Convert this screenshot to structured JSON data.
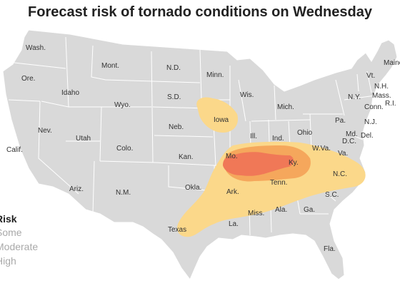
{
  "title": "Forecast risk of tornado conditions on Wednesday",
  "colors": {
    "land": "#d9d9d9",
    "border": "#ffffff",
    "risk_some": "#fbd88a",
    "risk_moderate": "#f5a75c",
    "risk_high": "#f07857",
    "label": "#333333"
  },
  "legend": {
    "title": "Risk",
    "items": [
      {
        "label": "Some",
        "level": "some"
      },
      {
        "label": "Moderate",
        "level": "moderate"
      },
      {
        "label": "High",
        "level": "high"
      }
    ]
  },
  "state_labels": [
    {
      "name": "Wash."
    },
    {
      "name": "Ore."
    },
    {
      "name": "Calif."
    },
    {
      "name": "Nev."
    },
    {
      "name": "Idaho"
    },
    {
      "name": "Mont."
    },
    {
      "name": "Wyo."
    },
    {
      "name": "Utah"
    },
    {
      "name": "Colo."
    },
    {
      "name": "Ariz."
    },
    {
      "name": "N.M."
    },
    {
      "name": "N.D."
    },
    {
      "name": "S.D."
    },
    {
      "name": "Neb."
    },
    {
      "name": "Kan."
    },
    {
      "name": "Okla."
    },
    {
      "name": "Texas"
    },
    {
      "name": "Minn."
    },
    {
      "name": "Iowa"
    },
    {
      "name": "Mo."
    },
    {
      "name": "Ark."
    },
    {
      "name": "La."
    },
    {
      "name": "Wis."
    },
    {
      "name": "Ill."
    },
    {
      "name": "Mich."
    },
    {
      "name": "Ind."
    },
    {
      "name": "Ohio"
    },
    {
      "name": "Ky."
    },
    {
      "name": "Tenn."
    },
    {
      "name": "Miss."
    },
    {
      "name": "Ala."
    },
    {
      "name": "Ga."
    },
    {
      "name": "Fla."
    },
    {
      "name": "S.C."
    },
    {
      "name": "N.C."
    },
    {
      "name": "Va."
    },
    {
      "name": "W.Va."
    },
    {
      "name": "Pa."
    },
    {
      "name": "N.Y."
    },
    {
      "name": "Md."
    },
    {
      "name": "D.C."
    },
    {
      "name": "Del."
    },
    {
      "name": "N.J."
    },
    {
      "name": "Conn."
    },
    {
      "name": "R.I."
    },
    {
      "name": "Mass."
    },
    {
      "name": "N.H."
    },
    {
      "name": "Vt."
    },
    {
      "name": "Maine"
    }
  ]
}
